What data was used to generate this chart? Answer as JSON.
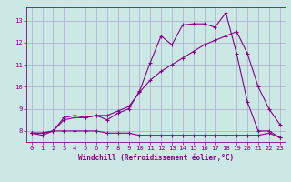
{
  "xlabel": "Windchill (Refroidissement éolien,°C)",
  "bg_color": "#cce8e4",
  "line_color": "#880088",
  "grid_color": "#aaaacc",
  "xlim": [
    -0.5,
    23.5
  ],
  "ylim": [
    7.5,
    13.6
  ],
  "xticks": [
    0,
    1,
    2,
    3,
    4,
    5,
    6,
    7,
    8,
    9,
    10,
    11,
    12,
    13,
    14,
    15,
    16,
    17,
    18,
    19,
    20,
    21,
    22,
    23
  ],
  "yticks": [
    8,
    9,
    10,
    11,
    12,
    13
  ],
  "line1_x": [
    0,
    1,
    2,
    3,
    4,
    5,
    6,
    7,
    8,
    9,
    10,
    11,
    12,
    13,
    14,
    15,
    16,
    17,
    18,
    19,
    20,
    21,
    22,
    23
  ],
  "line1_y": [
    7.9,
    7.8,
    8.0,
    8.0,
    8.0,
    8.0,
    8.0,
    7.9,
    7.9,
    7.9,
    7.8,
    7.8,
    7.8,
    7.8,
    7.8,
    7.8,
    7.8,
    7.8,
    7.8,
    7.8,
    7.8,
    7.8,
    7.9,
    7.7
  ],
  "line2_x": [
    0,
    1,
    2,
    3,
    4,
    5,
    6,
    7,
    8,
    9,
    10,
    11,
    12,
    13,
    14,
    15,
    16,
    17,
    18,
    19,
    20,
    21,
    22,
    23
  ],
  "line2_y": [
    7.9,
    7.9,
    8.0,
    8.6,
    8.7,
    8.6,
    8.7,
    8.5,
    8.8,
    9.0,
    9.8,
    11.1,
    12.3,
    11.9,
    12.8,
    12.85,
    12.85,
    12.7,
    13.35,
    11.5,
    9.3,
    8.0,
    8.0,
    7.7
  ],
  "line3_x": [
    0,
    1,
    2,
    3,
    4,
    5,
    6,
    7,
    8,
    9,
    10,
    11,
    12,
    13,
    14,
    15,
    16,
    17,
    18,
    19,
    20,
    21,
    22,
    23
  ],
  "line3_y": [
    7.9,
    7.9,
    8.0,
    8.5,
    8.6,
    8.6,
    8.7,
    8.7,
    8.9,
    9.1,
    9.75,
    10.3,
    10.7,
    11.0,
    11.3,
    11.6,
    11.9,
    12.1,
    12.3,
    12.5,
    11.5,
    10.0,
    9.0,
    8.3
  ],
  "xlabel_fontsize": 5.5,
  "tick_fontsize": 5.2,
  "linewidth": 0.8,
  "marker": "+",
  "markersize": 3.5
}
